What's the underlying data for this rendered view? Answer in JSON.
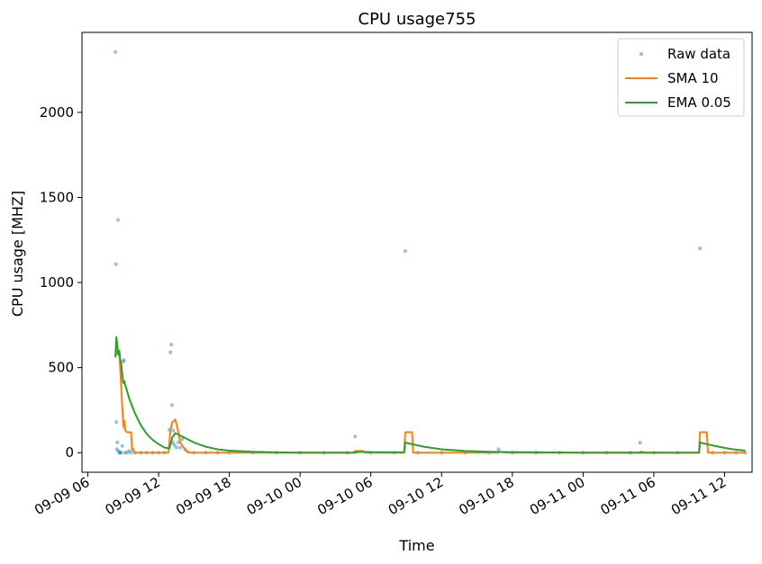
{
  "chart_data": {
    "type": "line",
    "title": "CPU usage755",
    "xlabel": "Time",
    "ylabel": "CPU usage [MHZ]",
    "x_axis": {
      "kind": "time",
      "start": "2024-09-09 06:00",
      "end": "2024-09-11 12:00",
      "ticks": [
        {
          "t": "2024-09-09 06:00",
          "label": "09-09 06"
        },
        {
          "t": "2024-09-09 12:00",
          "label": "09-09 12"
        },
        {
          "t": "2024-09-09 18:00",
          "label": "09-09 18"
        },
        {
          "t": "2024-09-10 00:00",
          "label": "09-10 00"
        },
        {
          "t": "2024-09-10 06:00",
          "label": "09-10 06"
        },
        {
          "t": "2024-09-10 12:00",
          "label": "09-10 12"
        },
        {
          "t": "2024-09-10 18:00",
          "label": "09-10 18"
        },
        {
          "t": "2024-09-11 00:00",
          "label": "09-11 00"
        },
        {
          "t": "2024-09-11 06:00",
          "label": "09-11 06"
        },
        {
          "t": "2024-09-11 12:00",
          "label": "09-11 12"
        }
      ],
      "range": [
        "2024-09-09 05:30",
        "2024-09-11 14:20"
      ]
    },
    "y_axis": {
      "ticks": [
        0,
        500,
        1000,
        1500,
        2000
      ],
      "range": [
        -115,
        2470
      ]
    },
    "legend": {
      "position": "top-right",
      "entries": [
        {
          "label": "Raw data",
          "kind": "marker",
          "color": "#1f77b4"
        },
        {
          "label": "SMA 10",
          "kind": "line",
          "color": "#ff7f0e"
        },
        {
          "label": "EMA 0.05",
          "kind": "line",
          "color": "#2ca02c"
        }
      ]
    },
    "series": [
      {
        "name": "Raw data",
        "style": "scatter",
        "color": "#1f77b4",
        "points": [
          [
            "2024-09-09 08:20",
            2355
          ],
          [
            "2024-09-09 08:22",
            1108
          ],
          [
            "2024-09-09 08:25",
            180
          ],
          [
            "2024-09-09 08:27",
            20
          ],
          [
            "2024-09-09 08:30",
            60
          ],
          [
            "2024-09-09 08:33",
            1368
          ],
          [
            "2024-09-09 08:36",
            10
          ],
          [
            "2024-09-09 08:40",
            0
          ],
          [
            "2024-09-09 08:45",
            0
          ],
          [
            "2024-09-09 08:50",
            0
          ],
          [
            "2024-09-09 08:55",
            40
          ],
          [
            "2024-09-09 09:00",
            535
          ],
          [
            "2024-09-09 09:03",
            545
          ],
          [
            "2024-09-09 09:06",
            150
          ],
          [
            "2024-09-09 09:10",
            0
          ],
          [
            "2024-09-09 09:20",
            0
          ],
          [
            "2024-09-09 09:30",
            10
          ],
          [
            "2024-09-09 09:40",
            0
          ],
          [
            "2024-09-09 09:50",
            20
          ],
          [
            "2024-09-09 10:00",
            0
          ],
          [
            "2024-09-09 10:30",
            0
          ],
          [
            "2024-09-09 11:00",
            0
          ],
          [
            "2024-09-09 11:30",
            0
          ],
          [
            "2024-09-09 12:00",
            0
          ],
          [
            "2024-09-09 12:30",
            0
          ],
          [
            "2024-09-09 12:55",
            135
          ],
          [
            "2024-09-09 13:00",
            590
          ],
          [
            "2024-09-09 13:05",
            635
          ],
          [
            "2024-09-09 13:08",
            280
          ],
          [
            "2024-09-09 13:12",
            60
          ],
          [
            "2024-09-09 13:15",
            130
          ],
          [
            "2024-09-09 13:20",
            45
          ],
          [
            "2024-09-09 13:30",
            30
          ],
          [
            "2024-09-09 13:40",
            60
          ],
          [
            "2024-09-09 13:50",
            30
          ],
          [
            "2024-09-09 14:00",
            80
          ],
          [
            "2024-09-09 14:15",
            20
          ],
          [
            "2024-09-09 14:30",
            5
          ],
          [
            "2024-09-09 15:00",
            0
          ],
          [
            "2024-09-09 16:00",
            0
          ],
          [
            "2024-09-09 17:00",
            0
          ],
          [
            "2024-09-09 18:00",
            0
          ],
          [
            "2024-09-09 20:00",
            0
          ],
          [
            "2024-09-09 22:00",
            0
          ],
          [
            "2024-09-10 00:00",
            0
          ],
          [
            "2024-09-10 02:00",
            0
          ],
          [
            "2024-09-10 04:00",
            0
          ],
          [
            "2024-09-10 04:40",
            95
          ],
          [
            "2024-09-10 06:00",
            0
          ],
          [
            "2024-09-10 08:00",
            0
          ],
          [
            "2024-09-10 08:55",
            1185
          ],
          [
            "2024-09-10 10:00",
            0
          ],
          [
            "2024-09-10 12:00",
            0
          ],
          [
            "2024-09-10 14:00",
            0
          ],
          [
            "2024-09-10 16:00",
            0
          ],
          [
            "2024-09-10 16:50",
            20
          ],
          [
            "2024-09-10 18:00",
            0
          ],
          [
            "2024-09-10 20:00",
            0
          ],
          [
            "2024-09-10 22:00",
            0
          ],
          [
            "2024-09-11 00:00",
            0
          ],
          [
            "2024-09-11 02:00",
            0
          ],
          [
            "2024-09-11 04:00",
            0
          ],
          [
            "2024-09-11 04:50",
            58
          ],
          [
            "2024-09-11 06:00",
            0
          ],
          [
            "2024-09-11 08:00",
            0
          ],
          [
            "2024-09-11 09:55",
            1200
          ],
          [
            "2024-09-11 11:00",
            0
          ],
          [
            "2024-09-11 12:00",
            0
          ],
          [
            "2024-09-11 13:00",
            0
          ],
          [
            "2024-09-11 13:45",
            0
          ]
        ]
      },
      {
        "name": "SMA 10",
        "style": "line",
        "color": "#ff7f0e",
        "points": [
          [
            "2024-09-09 08:20",
            560
          ],
          [
            "2024-09-09 08:30",
            610
          ],
          [
            "2024-09-09 08:40",
            590
          ],
          [
            "2024-09-09 08:50",
            380
          ],
          [
            "2024-09-09 09:00",
            160
          ],
          [
            "2024-09-09 09:05",
            190
          ],
          [
            "2024-09-09 09:10",
            130
          ],
          [
            "2024-09-09 09:20",
            120
          ],
          [
            "2024-09-09 09:40",
            120
          ],
          [
            "2024-09-09 09:45",
            20
          ],
          [
            "2024-09-09 10:00",
            0
          ],
          [
            "2024-09-09 12:50",
            0
          ],
          [
            "2024-09-09 13:00",
            130
          ],
          [
            "2024-09-09 13:10",
            180
          ],
          [
            "2024-09-09 13:25",
            195
          ],
          [
            "2024-09-09 13:35",
            150
          ],
          [
            "2024-09-09 13:50",
            60
          ],
          [
            "2024-09-09 14:20",
            10
          ],
          [
            "2024-09-09 14:40",
            0
          ],
          [
            "2024-09-10 04:30",
            0
          ],
          [
            "2024-09-10 04:40",
            10
          ],
          [
            "2024-09-10 05:20",
            10
          ],
          [
            "2024-09-10 05:30",
            0
          ],
          [
            "2024-09-10 08:50",
            0
          ],
          [
            "2024-09-10 08:55",
            120
          ],
          [
            "2024-09-10 09:30",
            120
          ],
          [
            "2024-09-10 09:35",
            0
          ],
          [
            "2024-09-10 16:50",
            0
          ],
          [
            "2024-09-10 16:55",
            5
          ],
          [
            "2024-09-10 17:30",
            0
          ],
          [
            "2024-09-11 04:45",
            0
          ],
          [
            "2024-09-11 04:50",
            5
          ],
          [
            "2024-09-11 05:30",
            0
          ],
          [
            "2024-09-11 09:50",
            0
          ],
          [
            "2024-09-11 09:55",
            120
          ],
          [
            "2024-09-11 10:30",
            120
          ],
          [
            "2024-09-11 10:35",
            0
          ],
          [
            "2024-09-11 13:45",
            0
          ]
        ]
      },
      {
        "name": "EMA 0.05",
        "style": "line",
        "color": "#2ca02c",
        "points": [
          [
            "2024-09-09 08:20",
            560
          ],
          [
            "2024-09-09 08:25",
            680
          ],
          [
            "2024-09-09 08:30",
            630
          ],
          [
            "2024-09-09 08:35",
            575
          ],
          [
            "2024-09-09 08:40",
            600
          ],
          [
            "2024-09-09 08:45",
            545
          ],
          [
            "2024-09-09 08:50",
            520
          ],
          [
            "2024-09-09 08:55",
            460
          ],
          [
            "2024-09-09 09:00",
            410
          ],
          [
            "2024-09-09 09:05",
            420
          ],
          [
            "2024-09-09 09:10",
            400
          ],
          [
            "2024-09-09 09:30",
            320
          ],
          [
            "2024-09-09 10:00",
            230
          ],
          [
            "2024-09-09 10:30",
            160
          ],
          [
            "2024-09-09 11:00",
            110
          ],
          [
            "2024-09-09 11:30",
            75
          ],
          [
            "2024-09-09 12:00",
            50
          ],
          [
            "2024-09-09 12:30",
            30
          ],
          [
            "2024-09-09 12:55",
            25
          ],
          [
            "2024-09-09 13:10",
            90
          ],
          [
            "2024-09-09 13:25",
            115
          ],
          [
            "2024-09-09 14:00",
            95
          ],
          [
            "2024-09-09 15:00",
            60
          ],
          [
            "2024-09-09 16:00",
            35
          ],
          [
            "2024-09-09 17:00",
            20
          ],
          [
            "2024-09-09 18:00",
            12
          ],
          [
            "2024-09-09 20:00",
            5
          ],
          [
            "2024-09-09 22:00",
            2
          ],
          [
            "2024-09-10 00:00",
            0
          ],
          [
            "2024-09-10 04:40",
            0
          ],
          [
            "2024-09-10 05:00",
            5
          ],
          [
            "2024-09-10 06:00",
            3
          ],
          [
            "2024-09-10 08:50",
            2
          ],
          [
            "2024-09-10 08:55",
            60
          ],
          [
            "2024-09-10 09:30",
            50
          ],
          [
            "2024-09-10 10:30",
            35
          ],
          [
            "2024-09-10 12:00",
            20
          ],
          [
            "2024-09-10 14:00",
            10
          ],
          [
            "2024-09-10 16:00",
            5
          ],
          [
            "2024-09-10 18:00",
            3
          ],
          [
            "2024-09-11 00:00",
            0
          ],
          [
            "2024-09-11 09:50",
            0
          ],
          [
            "2024-09-11 09:55",
            60
          ],
          [
            "2024-09-11 10:30",
            50
          ],
          [
            "2024-09-11 11:30",
            35
          ],
          [
            "2024-09-11 12:30",
            22
          ],
          [
            "2024-09-11 13:45",
            12
          ]
        ]
      }
    ]
  }
}
